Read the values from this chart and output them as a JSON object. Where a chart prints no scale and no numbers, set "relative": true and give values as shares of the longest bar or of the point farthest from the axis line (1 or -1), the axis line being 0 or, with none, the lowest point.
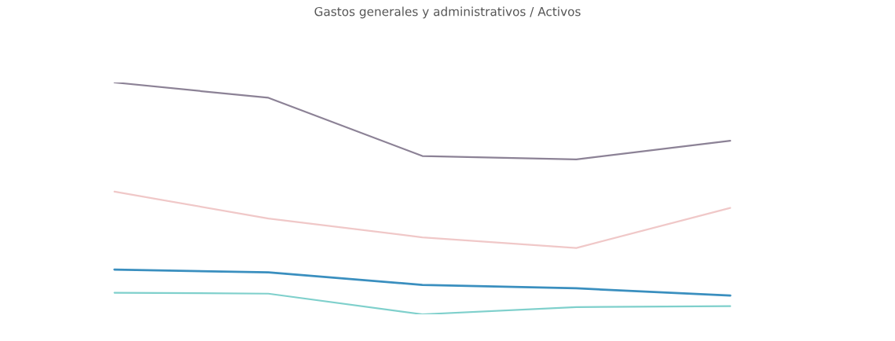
{
  "chart_data": {
    "type": "line",
    "title": "Gastos generales y administrativos / Activos",
    "relative": true,
    "categories": [
      null,
      null,
      null,
      null,
      null
    ],
    "series": [
      {
        "color": "#3a8fbf",
        "values": [
          0.193,
          0.181,
          0.127,
          0.112,
          0.081
        ]
      },
      {
        "color": "#7fd0cc",
        "values": [
          0.093,
          0.089,
          0,
          0.031,
          0.035
        ]
      },
      {
        "color": "#8c8296",
        "values": [
          1,
          0.934,
          0.683,
          0.668,
          0.749
        ]
      },
      {
        "color": "#f0c8c8",
        "values": [
          0.529,
          0.413,
          0.332,
          0.286,
          0.459
        ]
      }
    ],
    "grid": false,
    "marker": "none",
    "line_style": "solid"
  }
}
